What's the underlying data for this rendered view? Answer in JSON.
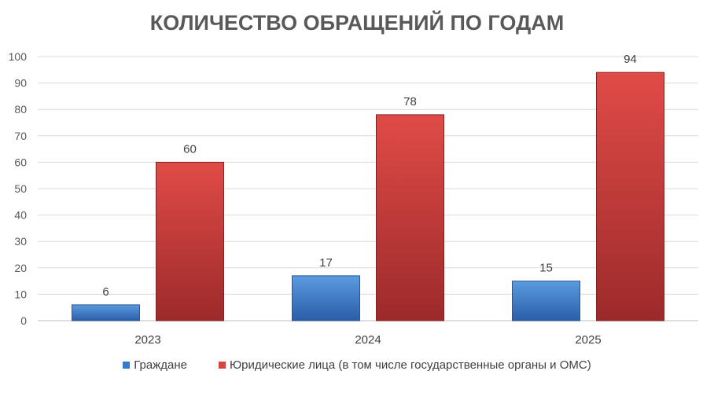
{
  "chart_data": {
    "type": "bar",
    "title": "КОЛИЧЕСТВО ОБРАЩЕНИЙ ПО ГОДАМ",
    "categories": [
      "2023",
      "2024",
      "2025"
    ],
    "series": [
      {
        "name": "Граждане",
        "values": [
          6,
          17,
          15
        ],
        "color": "#3a78c9"
      },
      {
        "name": "Юридические лица (в том числе государственные органы и ОМС)",
        "values": [
          60,
          78,
          94
        ],
        "color": "#d64541"
      }
    ],
    "ylim": [
      0,
      100
    ],
    "yticks": [
      0,
      10,
      20,
      30,
      40,
      50,
      60,
      70,
      80,
      90,
      100
    ],
    "grid": true,
    "legend_position": "bottom",
    "data_labels": true
  }
}
